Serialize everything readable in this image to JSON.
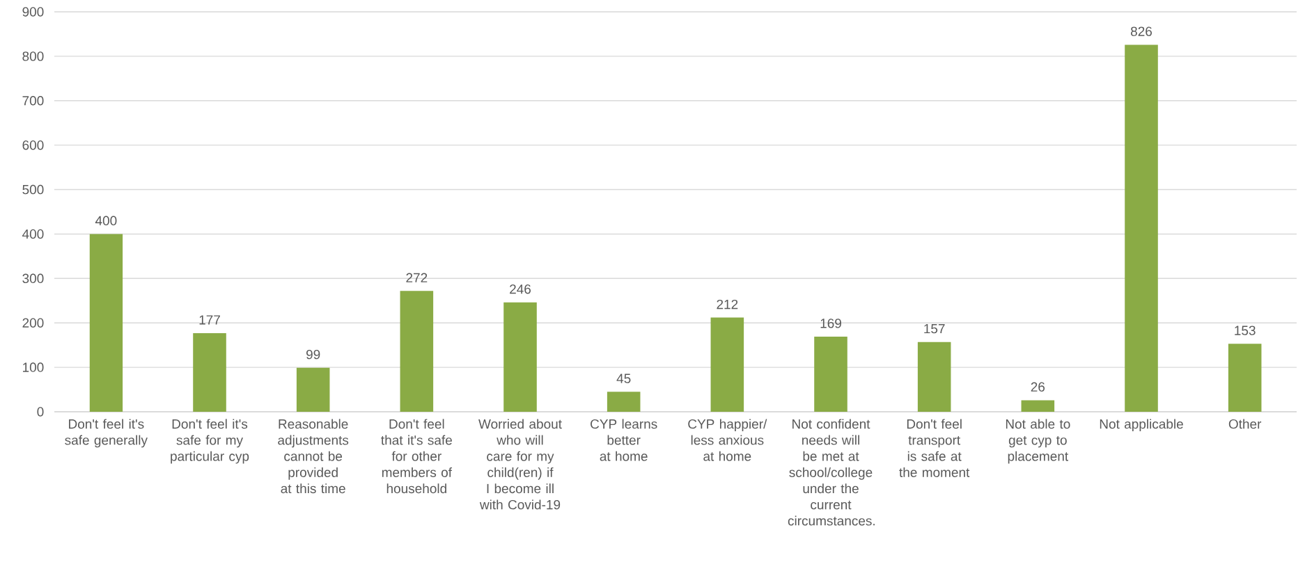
{
  "chart_data": {
    "type": "bar",
    "categories": [
      "Don't feel it's safe generally",
      "Don't feel it's safe for my particular cyp",
      "Reasonable adjustments cannot be provided at this time",
      "Don't feel that it's safe for other members of household",
      "Worried about who will care for my child(ren) if I become ill with Covid-19",
      "CYP learns better at home",
      "CYP happier/ less anxious at home",
      "Not confident needs will be met at school/college under the current circumstances.",
      "Don't feel transport is safe at the moment",
      "Not able to get cyp to placement",
      "Not applicable",
      "Other"
    ],
    "values": [
      400,
      177,
      99,
      272,
      246,
      45,
      212,
      169,
      157,
      26,
      826,
      153
    ],
    "color": "#8aab45",
    "ylim": [
      0,
      900
    ],
    "yticks": [
      0,
      100,
      200,
      300,
      400,
      500,
      600,
      700,
      800,
      900
    ],
    "grid": "y",
    "data_labels": true
  }
}
